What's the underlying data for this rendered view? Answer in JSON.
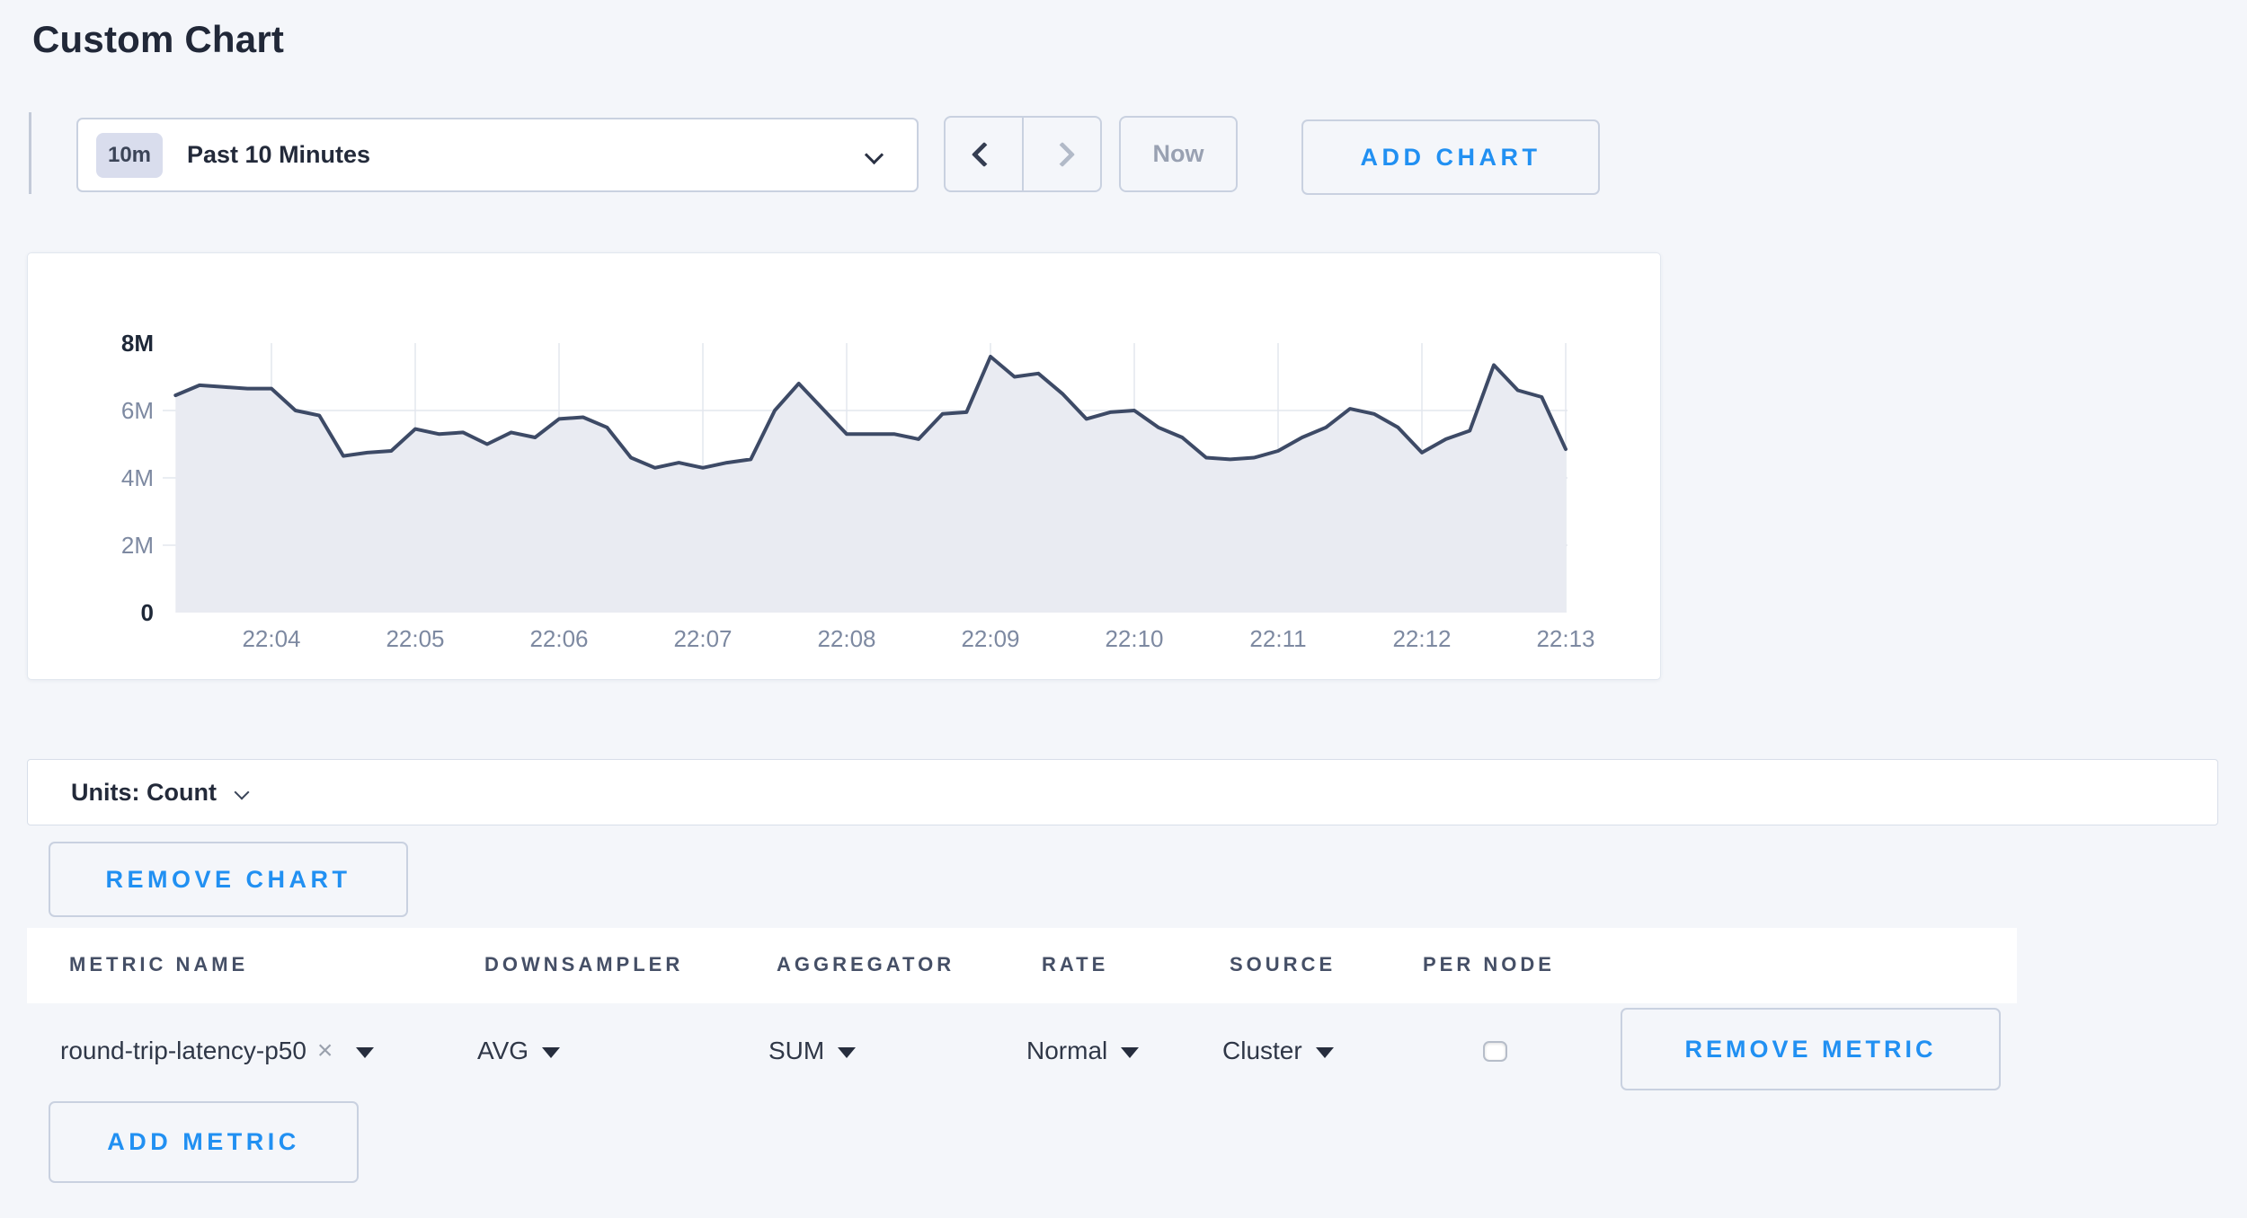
{
  "page": {
    "title": "Custom Chart"
  },
  "colors": {
    "accent": "#2190f2",
    "disabled_text": "#99a1b2",
    "page_background": "#f4f6fa"
  },
  "icons": {
    "clear": "×",
    "range_dropdown": "chevron-down",
    "prev": "chevron-left",
    "next": "chevron-right"
  },
  "toolbar": {
    "range_badge": "10m",
    "range_label": "Past 10 Minutes",
    "now_label": "Now",
    "add_chart_label": "ADD CHART"
  },
  "chart_data": {
    "type": "area",
    "title": "",
    "xlabel": "",
    "ylabel": "",
    "legend": "none",
    "grid": true,
    "x_ticks": [
      "22:04",
      "22:05",
      "22:06",
      "22:07",
      "22:08",
      "22:09",
      "22:10",
      "22:11",
      "22:12",
      "22:13"
    ],
    "tick_interval_sec": 60,
    "start_offset_before_first_tick_sec": 40,
    "interval_sec": 10,
    "ylim_millions": [
      0,
      8
    ],
    "y_gridlines_millions": [
      2,
      4,
      6
    ],
    "y_ticks": [
      {
        "label": "0",
        "value_millions": 0,
        "bold": true
      },
      {
        "label": "2M",
        "value_millions": 2,
        "bold": false
      },
      {
        "label": "4M",
        "value_millions": 4,
        "bold": false
      },
      {
        "label": "6M",
        "value_millions": 6,
        "bold": false
      },
      {
        "label": "8M",
        "value_millions": 8,
        "bold": true
      }
    ],
    "series": [
      {
        "name": "round-trip-latency-p50",
        "values_millions": [
          6.45,
          6.75,
          6.7,
          6.65,
          6.65,
          6.0,
          5.85,
          4.65,
          4.75,
          4.8,
          5.45,
          5.3,
          5.35,
          5.0,
          5.35,
          5.2,
          5.75,
          5.8,
          5.5,
          4.6,
          4.3,
          4.45,
          4.3,
          4.45,
          4.55,
          6.0,
          6.8,
          6.05,
          5.3,
          5.3,
          5.3,
          5.15,
          5.9,
          5.95,
          7.6,
          7.0,
          7.1,
          6.5,
          5.75,
          5.95,
          6.0,
          5.5,
          5.2,
          4.6,
          4.55,
          4.6,
          4.8,
          5.2,
          5.5,
          6.05,
          5.9,
          5.5,
          4.75,
          5.15,
          5.4,
          7.35,
          6.6,
          6.4,
          4.85
        ]
      }
    ],
    "colors": {
      "line": "#3d4a66",
      "fill": "#e9ebf2",
      "grid": "#e3e7ee",
      "axis_label": "#7d89a1",
      "axis_strong": "#1e2838"
    }
  },
  "units_bar": {
    "label": "Units: Count"
  },
  "chart_actions": {
    "remove_chart_label": "REMOVE CHART"
  },
  "metrics_table": {
    "headers": [
      "METRIC NAME",
      "DOWNSAMPLER",
      "AGGREGATOR",
      "RATE",
      "SOURCE",
      "PER NODE"
    ],
    "rows": [
      {
        "metric_name": "round-trip-latency-p50",
        "downsampler": "AVG",
        "aggregator": "SUM",
        "rate": "Normal",
        "source": "Cluster",
        "per_node_checked": false,
        "remove_label": "REMOVE METRIC"
      }
    ],
    "add_metric_label": "ADD METRIC"
  }
}
